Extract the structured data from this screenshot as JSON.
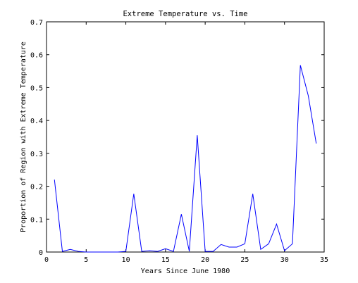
{
  "chart_data": {
    "type": "line",
    "title": "Extreme Temperature vs. Time",
    "xlabel": "Years Since June 1980",
    "ylabel": "Proportion of Region with Extreme Temperature",
    "xlim": [
      0,
      35
    ],
    "ylim": [
      0,
      0.7
    ],
    "xticks": [
      0,
      5,
      10,
      15,
      20,
      25,
      30,
      35
    ],
    "yticks": [
      0,
      0.1,
      0.2,
      0.3,
      0.4,
      0.5,
      0.6,
      0.7
    ],
    "xtick_labels": [
      "0",
      "5",
      "10",
      "15",
      "20",
      "25",
      "30",
      "35"
    ],
    "ytick_labels": [
      "0",
      "0.1",
      "0.2",
      "0.3",
      "0.4",
      "0.5",
      "0.6",
      "0.7"
    ],
    "grid": false,
    "series": [
      {
        "color": "#0000ff",
        "x": [
          1,
          2,
          3,
          4,
          5,
          6,
          7,
          8,
          9,
          10,
          11,
          12,
          13,
          14,
          15,
          16,
          17,
          18,
          19,
          20,
          21,
          22,
          23,
          24,
          25,
          26,
          27,
          28,
          29,
          30,
          31,
          32,
          33,
          34
        ],
        "y": [
          0.22,
          0.002,
          0.008,
          0.002,
          0,
          0,
          0,
          0,
          0,
          0.002,
          0.177,
          0.002,
          0.004,
          0.002,
          0.01,
          0.002,
          0.115,
          0.002,
          0.355,
          0.002,
          0.002,
          0.023,
          0.015,
          0.015,
          0.025,
          0.177,
          0.008,
          0.025,
          0.085,
          0.004,
          0.025,
          0.568,
          0.475,
          0.33
        ]
      }
    ]
  }
}
